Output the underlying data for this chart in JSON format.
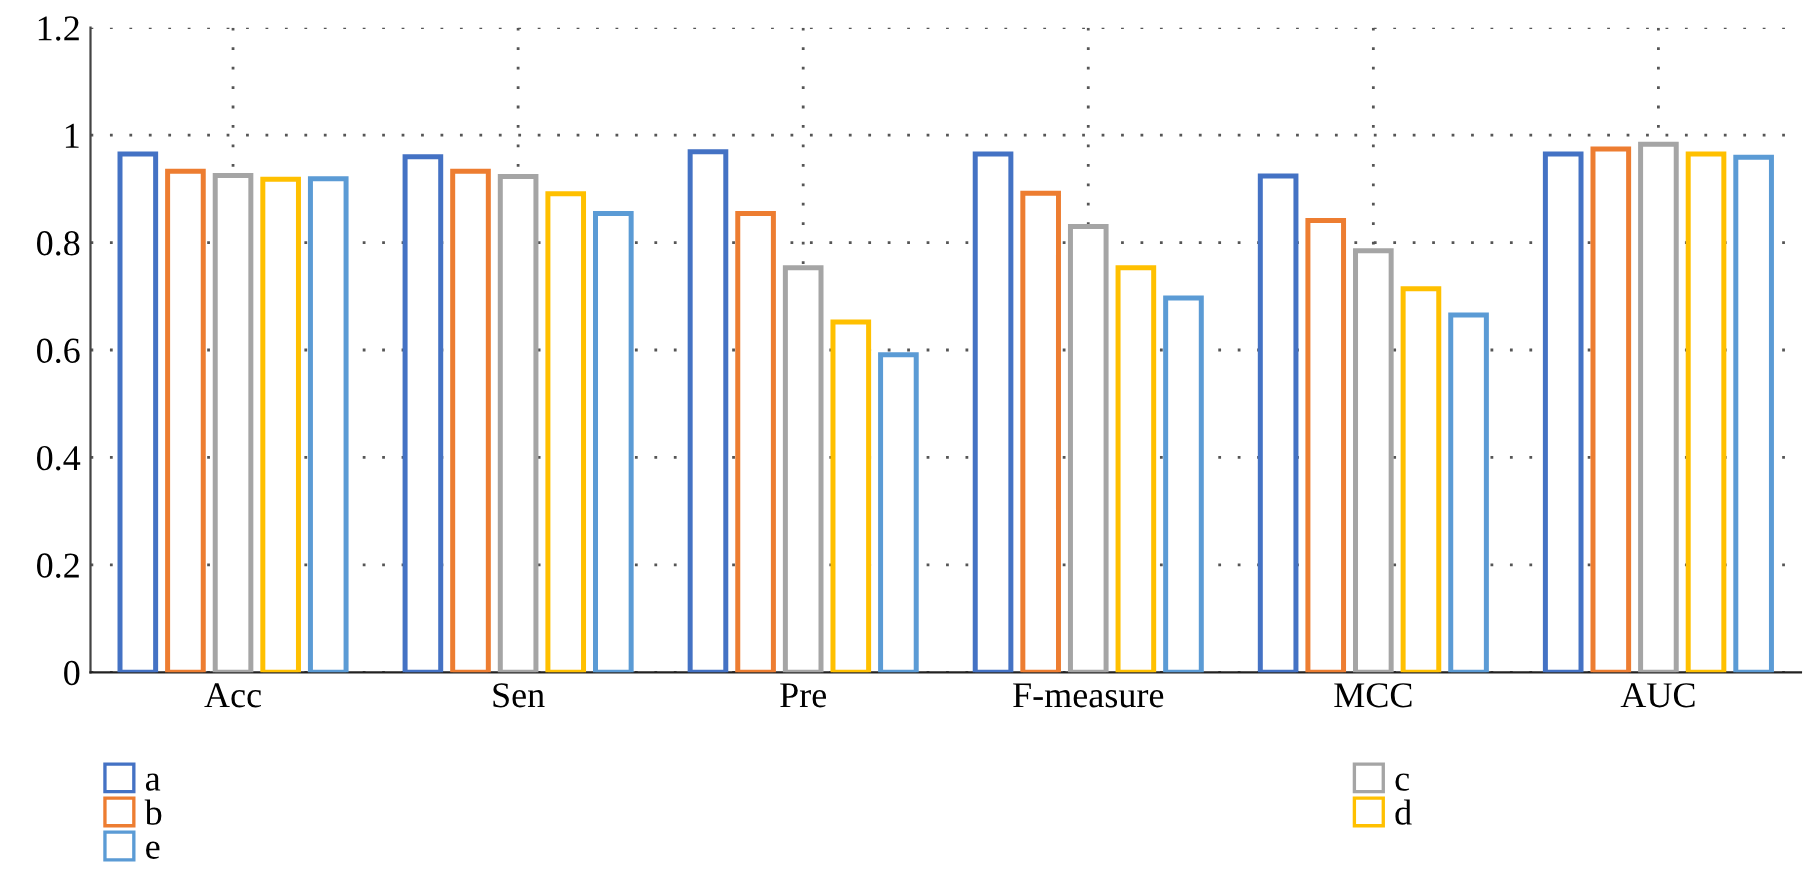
{
  "chart_data": {
    "type": "bar",
    "categories": [
      "Acc",
      "Sen",
      "Pre",
      "F-measure",
      "MCC",
      "AUC"
    ],
    "series": [
      {
        "name": "a",
        "color": "#4472c4",
        "values": [
          0.965,
          0.96,
          0.969,
          0.965,
          0.924,
          0.965
        ]
      },
      {
        "name": "b",
        "color": "#ed7d31",
        "values": [
          0.933,
          0.933,
          0.854,
          0.892,
          0.841,
          0.974
        ]
      },
      {
        "name": "c",
        "color": "#a5a5a5",
        "values": [
          0.925,
          0.923,
          0.753,
          0.83,
          0.785,
          0.983
        ]
      },
      {
        "name": "d",
        "color": "#ffc000",
        "values": [
          0.918,
          0.891,
          0.652,
          0.753,
          0.714,
          0.965
        ]
      },
      {
        "name": "e",
        "color": "#5b9bd5",
        "values": [
          0.919,
          0.854,
          0.591,
          0.697,
          0.665,
          0.959
        ]
      }
    ],
    "ylim": [
      0,
      1.2
    ],
    "yticks": [
      0,
      0.2,
      0.4,
      0.6,
      0.8,
      1,
      1.2
    ],
    "grid": true,
    "legend": "bottom"
  }
}
